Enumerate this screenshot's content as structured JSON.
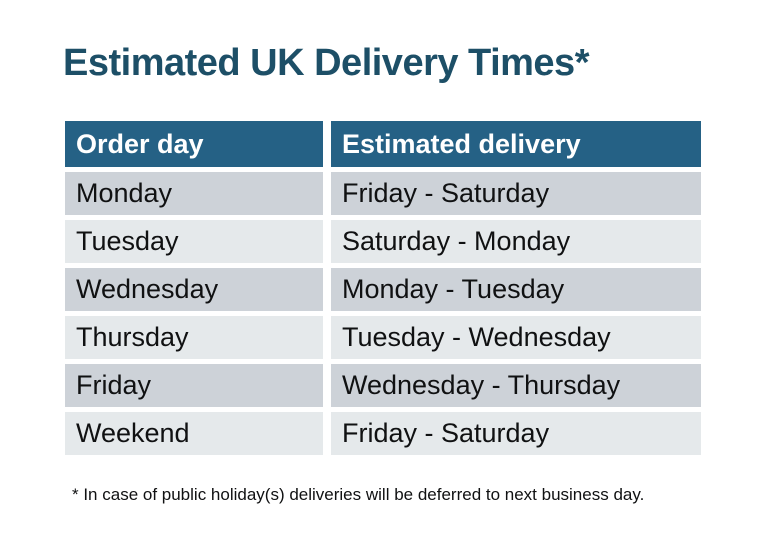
{
  "title": "Estimated UK Delivery Times*",
  "table": {
    "columns": [
      "Order day",
      "Estimated delivery"
    ],
    "rows": [
      {
        "order_day": "Monday",
        "estimated_delivery": "Friday - Saturday"
      },
      {
        "order_day": "Tuesday",
        "estimated_delivery": "Saturday - Monday"
      },
      {
        "order_day": "Wednesday",
        "estimated_delivery": "Monday - Tuesday"
      },
      {
        "order_day": "Thursday",
        "estimated_delivery": "Tuesday - Wednesday"
      },
      {
        "order_day": "Friday",
        "estimated_delivery": "Wednesday - Thursday"
      },
      {
        "order_day": "Weekend",
        "estimated_delivery": "Friday - Saturday"
      }
    ]
  },
  "footnote": "* In case of public holiday(s) deliveries will be deferred to next business day.",
  "colors": {
    "title_text": "#1d4f67",
    "header_bg": "#256185",
    "header_text": "#ffffff",
    "row_dark_bg": "#cdd2d8",
    "row_light_bg": "#e5e9eb",
    "body_text": "#101112",
    "page_bg": "#ffffff"
  }
}
